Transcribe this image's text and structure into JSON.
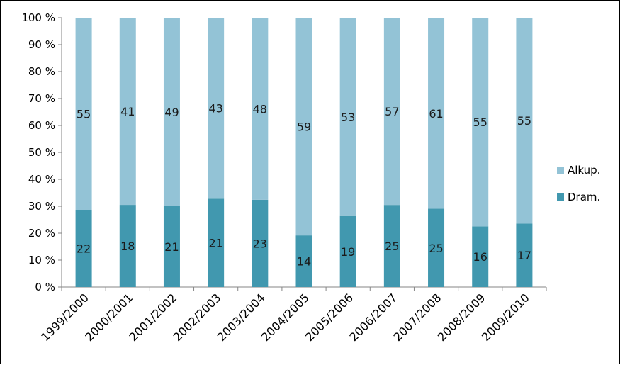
{
  "chart_data": {
    "type": "bar",
    "stacked": true,
    "percent_stacked": true,
    "categories": [
      "1999/2000",
      "2000/2001",
      "2001/2002",
      "2002/2003",
      "2003/2004",
      "2004/2005",
      "2005/2006",
      "2006/2007",
      "2007/2008",
      "2008/2009",
      "2009/2010"
    ],
    "series": [
      {
        "name": "Dram.",
        "color": "#4198AF",
        "values": [
          22,
          18,
          21,
          21,
          23,
          14,
          19,
          25,
          25,
          16,
          17
        ]
      },
      {
        "name": "Alkup.",
        "color": "#93C3D6",
        "values": [
          55,
          41,
          49,
          43,
          48,
          59,
          53,
          57,
          61,
          55,
          55
        ]
      }
    ],
    "yticks": [
      "0 %",
      "10 %",
      "20 %",
      "30 %",
      "40 %",
      "50 %",
      "60 %",
      "70 %",
      "80 %",
      "90 %",
      "100 %"
    ],
    "ylim": [
      0,
      100
    ],
    "grid": false,
    "legend_position": "right",
    "legend_order": [
      "Alkup.",
      "Dram."
    ]
  }
}
